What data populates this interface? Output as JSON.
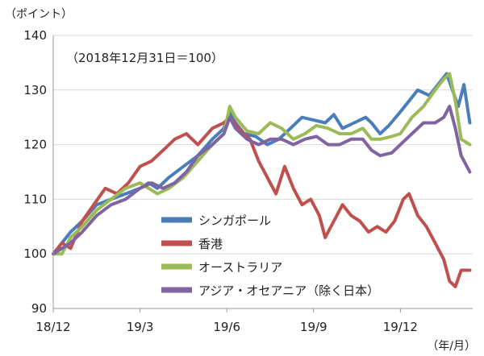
{
  "chart_data": {
    "type": "line",
    "title": "",
    "note": "（2018年12月31日＝100）",
    "ylabel": "（ポイント）",
    "xunit": "（年/月）",
    "ylim": [
      90,
      140
    ],
    "yticks": [
      90,
      100,
      110,
      120,
      130,
      140
    ],
    "grid": true,
    "legend_position": "bottom-center",
    "x_range": [
      0,
      14.5
    ],
    "x_ticks": [
      {
        "label": "18/12",
        "value": 0
      },
      {
        "label": "19/3",
        "value": 3
      },
      {
        "label": "19/6",
        "value": 6
      },
      {
        "label": "19/9",
        "value": 9
      },
      {
        "label": "19/12",
        "value": 12
      }
    ],
    "series": [
      {
        "name": "シンガポール",
        "color": "#4a7ebb",
        "points": [
          [
            0,
            100
          ],
          [
            0.3,
            102
          ],
          [
            0.6,
            104
          ],
          [
            1,
            106
          ],
          [
            1.5,
            109
          ],
          [
            2,
            110
          ],
          [
            2.5,
            111
          ],
          [
            3,
            112
          ],
          [
            3.3,
            113
          ],
          [
            3.6,
            112
          ],
          [
            4,
            114
          ],
          [
            4.5,
            116
          ],
          [
            5,
            118
          ],
          [
            5.5,
            121
          ],
          [
            5.9,
            123
          ],
          [
            6.1,
            126
          ],
          [
            6.3,
            124
          ],
          [
            6.6,
            122
          ],
          [
            7,
            121.5
          ],
          [
            7.4,
            120
          ],
          [
            7.8,
            121
          ],
          [
            8.2,
            123
          ],
          [
            8.6,
            125
          ],
          [
            9,
            124.5
          ],
          [
            9.4,
            124
          ],
          [
            9.7,
            125.5
          ],
          [
            10,
            123
          ],
          [
            10.4,
            124
          ],
          [
            10.8,
            125
          ],
          [
            11,
            124
          ],
          [
            11.3,
            122
          ],
          [
            11.6,
            123.5
          ],
          [
            12,
            126
          ],
          [
            12.3,
            128
          ],
          [
            12.6,
            130
          ],
          [
            13,
            129
          ],
          [
            13.3,
            131
          ],
          [
            13.6,
            133
          ],
          [
            13.8,
            130
          ],
          [
            14,
            127
          ],
          [
            14.2,
            131
          ],
          [
            14.4,
            124
          ]
        ]
      },
      {
        "name": "香港",
        "color": "#c0504d",
        "points": [
          [
            0,
            100
          ],
          [
            0.3,
            102
          ],
          [
            0.6,
            101
          ],
          [
            1,
            106
          ],
          [
            1.4,
            109
          ],
          [
            1.8,
            112
          ],
          [
            2.2,
            111
          ],
          [
            2.6,
            113
          ],
          [
            3,
            116
          ],
          [
            3.4,
            117
          ],
          [
            3.8,
            119
          ],
          [
            4.2,
            121
          ],
          [
            4.6,
            122
          ],
          [
            5,
            120
          ],
          [
            5.5,
            123
          ],
          [
            5.9,
            124
          ],
          [
            6.1,
            125
          ],
          [
            6.4,
            123
          ],
          [
            6.8,
            121
          ],
          [
            7.1,
            117
          ],
          [
            7.4,
            114
          ],
          [
            7.7,
            111
          ],
          [
            8,
            116
          ],
          [
            8.3,
            112
          ],
          [
            8.6,
            109
          ],
          [
            8.9,
            110
          ],
          [
            9.2,
            107
          ],
          [
            9.4,
            103
          ],
          [
            9.7,
            106
          ],
          [
            10,
            109
          ],
          [
            10.3,
            107
          ],
          [
            10.6,
            106
          ],
          [
            10.9,
            104
          ],
          [
            11.2,
            105
          ],
          [
            11.5,
            104
          ],
          [
            11.8,
            106
          ],
          [
            12.1,
            110
          ],
          [
            12.3,
            111
          ],
          [
            12.6,
            107
          ],
          [
            12.9,
            105
          ],
          [
            13.2,
            102
          ],
          [
            13.5,
            99
          ],
          [
            13.7,
            95
          ],
          [
            13.9,
            94
          ],
          [
            14.1,
            97
          ],
          [
            14.4,
            97
          ]
        ]
      },
      {
        "name": "オーストラリア",
        "color": "#9bbb59",
        "points": [
          [
            0,
            100
          ],
          [
            0.3,
            100
          ],
          [
            0.6,
            103
          ],
          [
            1,
            105
          ],
          [
            1.5,
            108
          ],
          [
            2,
            110
          ],
          [
            2.5,
            112
          ],
          [
            3,
            113
          ],
          [
            3.3,
            112
          ],
          [
            3.6,
            111
          ],
          [
            4,
            112
          ],
          [
            4.5,
            114
          ],
          [
            5,
            117
          ],
          [
            5.5,
            120
          ],
          [
            5.9,
            122
          ],
          [
            6.1,
            127
          ],
          [
            6.3,
            125
          ],
          [
            6.7,
            122.5
          ],
          [
            7.1,
            122
          ],
          [
            7.5,
            124
          ],
          [
            7.9,
            123
          ],
          [
            8.3,
            121
          ],
          [
            8.7,
            122
          ],
          [
            9.1,
            123.5
          ],
          [
            9.5,
            123
          ],
          [
            9.9,
            122
          ],
          [
            10.3,
            122
          ],
          [
            10.7,
            123
          ],
          [
            11,
            121
          ],
          [
            11.3,
            121
          ],
          [
            11.7,
            121.5
          ],
          [
            12,
            122
          ],
          [
            12.4,
            125
          ],
          [
            12.8,
            127
          ],
          [
            13.2,
            130
          ],
          [
            13.5,
            132
          ],
          [
            13.7,
            133
          ],
          [
            13.9,
            128
          ],
          [
            14.1,
            121
          ],
          [
            14.4,
            120
          ]
        ]
      },
      {
        "name": "アジア・オセアニア（除く日本）",
        "color": "#8064a2",
        "points": [
          [
            0,
            100
          ],
          [
            0.3,
            101
          ],
          [
            0.6,
            102
          ],
          [
            1,
            104
          ],
          [
            1.5,
            107
          ],
          [
            2,
            109
          ],
          [
            2.5,
            110
          ],
          [
            3,
            112
          ],
          [
            3.4,
            113
          ],
          [
            3.8,
            112
          ],
          [
            4.2,
            113
          ],
          [
            4.6,
            115
          ],
          [
            5,
            118
          ],
          [
            5.5,
            120
          ],
          [
            5.9,
            122
          ],
          [
            6.1,
            125
          ],
          [
            6.3,
            123
          ],
          [
            6.7,
            121
          ],
          [
            7.1,
            120
          ],
          [
            7.5,
            121
          ],
          [
            7.9,
            121
          ],
          [
            8.3,
            120
          ],
          [
            8.7,
            121
          ],
          [
            9.1,
            121.5
          ],
          [
            9.5,
            120
          ],
          [
            9.9,
            120
          ],
          [
            10.3,
            121
          ],
          [
            10.7,
            121
          ],
          [
            11,
            119
          ],
          [
            11.3,
            118
          ],
          [
            11.7,
            118.5
          ],
          [
            12,
            120
          ],
          [
            12.4,
            122
          ],
          [
            12.8,
            124
          ],
          [
            13.2,
            124
          ],
          [
            13.5,
            125
          ],
          [
            13.7,
            127
          ],
          [
            13.9,
            123
          ],
          [
            14.1,
            118
          ],
          [
            14.4,
            115
          ]
        ]
      }
    ]
  }
}
